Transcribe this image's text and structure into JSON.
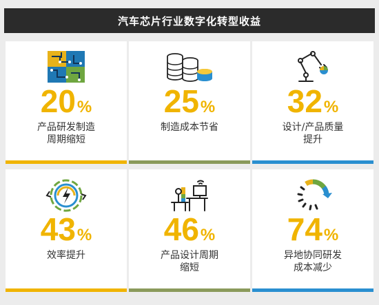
{
  "header": {
    "title": "汽车芯片行业数字化转型收益"
  },
  "colors": {
    "gold": "#f0b400",
    "olive": "#8a9a5b",
    "blue": "#2a8fd0"
  },
  "cards": [
    {
      "icon": "circuit-board-icon",
      "value": "20",
      "unit": "%",
      "label": "产品研发制造\n周期缩短",
      "bar": "gold"
    },
    {
      "icon": "coin-stack-icon",
      "value": "25",
      "unit": "%",
      "label": "制造成本节省",
      "bar": "olive"
    },
    {
      "icon": "robot-arm-icon",
      "value": "32",
      "unit": "%",
      "label": "设计/产品质量\n提升",
      "bar": "blue"
    },
    {
      "icon": "gear-lightning-icon",
      "value": "43",
      "unit": "%",
      "label": "效率提升",
      "bar": "gold"
    },
    {
      "icon": "workstation-icon",
      "value": "46",
      "unit": "%",
      "label": "产品设计周期\n缩短",
      "bar": "olive"
    },
    {
      "icon": "circular-arrow-icon",
      "value": "74",
      "unit": "%",
      "label": "异地协同研发\n成本减少",
      "bar": "blue"
    }
  ]
}
